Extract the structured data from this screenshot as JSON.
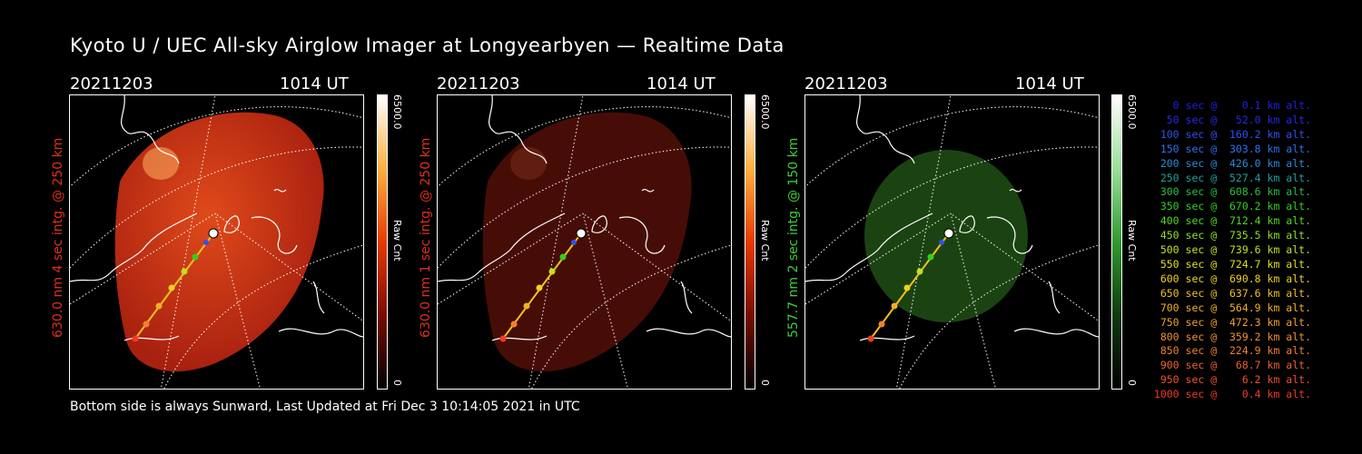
{
  "title": "Kyoto U / UEC All-sky Airglow Imager at Longyearbyen — Realtime Data",
  "footer": "Bottom side is always Sunward, Last Updated at Fri Dec  3 10:14:05 2021 in UTC",
  "panels": [
    {
      "date": "20211203",
      "time": "1014 UT",
      "ylabel": "630.0 nm 4 sec intg. @ 250 km",
      "label_color": "#e0301c",
      "cbar_max": "6500.0",
      "cbar_unit": "Raw Cnt",
      "cbar_min": "0",
      "cbar_colors": [
        "#000000",
        "#7a0c00",
        "#e83a00",
        "#ffb040",
        "#ffffff"
      ],
      "image_color": "#c02a10",
      "image_opacity": 0.95
    },
    {
      "date": "20211203",
      "time": "1014 UT",
      "ylabel": "630.0 nm 1 sec intg. @ 250 km",
      "label_color": "#e0301c",
      "cbar_max": "6500.0",
      "cbar_unit": "Raw Cnt",
      "cbar_min": "0",
      "cbar_colors": [
        "#000000",
        "#7a0c00",
        "#e83a00",
        "#ffb040",
        "#ffffff"
      ],
      "image_color": "#5a1208",
      "image_opacity": 0.8
    },
    {
      "date": "20211203",
      "time": "1014 UT",
      "ylabel": "557.7 nm 2 sec intg. @ 150 km",
      "label_color": "#3ad13a",
      "cbar_max": "6500.0",
      "cbar_unit": "Raw Cnt",
      "cbar_min": "0",
      "cbar_colors": [
        "#000000",
        "#0e3a0e",
        "#2f9a2f",
        "#9ae09a",
        "#ffffff"
      ],
      "image_color": "#1e4a14",
      "image_opacity": 0.85
    }
  ],
  "legend": [
    {
      "text": "   0 sec @    0.1 km alt.",
      "color": "#2020e0"
    },
    {
      "text": "  50 sec @   52.0 km alt.",
      "color": "#2828e8"
    },
    {
      "text": " 100 sec @  160.2 km alt.",
      "color": "#3050f0"
    },
    {
      "text": " 150 sec @  303.8 km alt.",
      "color": "#3070f0"
    },
    {
      "text": " 200 sec @  426.0 km alt.",
      "color": "#2a8ad8"
    },
    {
      "text": " 250 sec @  527.4 km alt.",
      "color": "#20a0a0"
    },
    {
      "text": " 300 sec @  608.6 km alt.",
      "color": "#28c040"
    },
    {
      "text": " 350 sec @  670.2 km alt.",
      "color": "#30d020"
    },
    {
      "text": " 400 sec @  712.4 km alt.",
      "color": "#50d820"
    },
    {
      "text": " 450 sec @  735.5 km alt.",
      "color": "#90e020"
    },
    {
      "text": " 500 sec @  739.6 km alt.",
      "color": "#c0e020"
    },
    {
      "text": " 550 sec @  724.7 km alt.",
      "color": "#e0e020"
    },
    {
      "text": " 600 sec @  690.8 km alt.",
      "color": "#f0d020"
    },
    {
      "text": " 650 sec @  637.6 km alt.",
      "color": "#f0c020"
    },
    {
      "text": " 700 sec @  564.9 km alt.",
      "color": "#f0b020"
    },
    {
      "text": " 750 sec @  472.3 km alt.",
      "color": "#f0a030"
    },
    {
      "text": " 800 sec @  359.2 km alt.",
      "color": "#f09030"
    },
    {
      "text": " 850 sec @  224.9 km alt.",
      "color": "#f08030"
    },
    {
      "text": " 900 sec @   68.7 km alt.",
      "color": "#f06030"
    },
    {
      "text": " 950 sec @    6.2 km alt.",
      "color": "#f05030"
    },
    {
      "text": "1000 sec @    0.4 km alt.",
      "color": "#f03a28"
    }
  ]
}
